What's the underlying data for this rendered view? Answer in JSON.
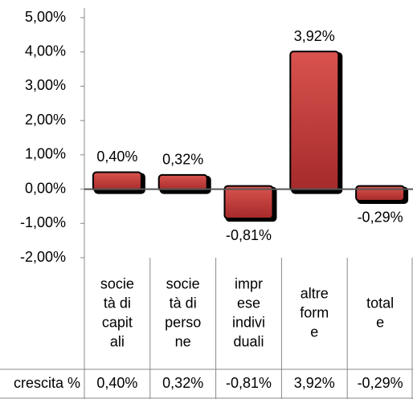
{
  "chart_data": {
    "type": "bar",
    "categories": [
      [
        "socie",
        "tà di",
        "capit",
        "ali"
      ],
      [
        "socie",
        "tà di",
        "perso",
        "ne"
      ],
      [
        "impr",
        "ese",
        "indivi",
        "duali"
      ],
      [
        "altre",
        "form",
        "e"
      ],
      [
        "total",
        "e"
      ]
    ],
    "series": [
      {
        "name": "crescita %",
        "color": "#c0393b",
        "values": [
          0.4,
          0.32,
          -0.81,
          3.92,
          -0.29
        ],
        "value_labels": [
          "0,40%",
          "0,32%",
          "-0,81%",
          "3,92%",
          "-0,29%"
        ]
      }
    ],
    "ylim": [
      -2,
      5
    ],
    "yticks": [
      {
        "value": 5,
        "label": "5,00%"
      },
      {
        "value": 4,
        "label": "4,00%"
      },
      {
        "value": 3,
        "label": "3,00%"
      },
      {
        "value": 2,
        "label": "2,00%"
      },
      {
        "value": 1,
        "label": "1,00%"
      },
      {
        "value": 0,
        "label": "0,00%"
      },
      {
        "value": -1,
        "label": "-1,00%"
      },
      {
        "value": -2,
        "label": "-2,00%"
      }
    ],
    "data_table": true
  }
}
